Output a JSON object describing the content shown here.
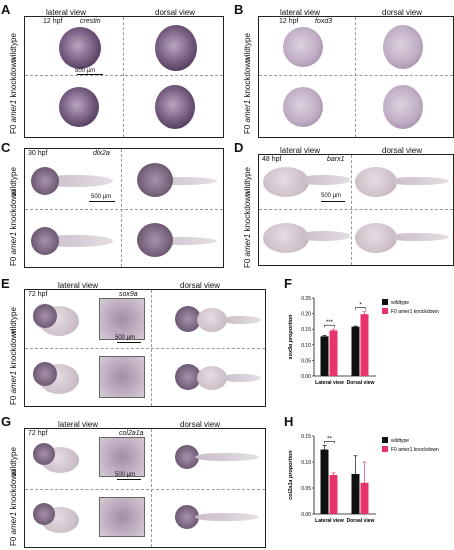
{
  "panels": {
    "A": {
      "label": "A",
      "stage": "12 hpf",
      "gene": "crestin",
      "scale": "500 µm"
    },
    "B": {
      "label": "B",
      "stage": "12 hpf",
      "gene": "foxd3"
    },
    "C": {
      "label": "C",
      "stage": "30 hpf",
      "gene": "dlx2a",
      "scale": "500 µm"
    },
    "D": {
      "label": "D",
      "stage": "48 hpf",
      "gene": "barx1",
      "scale": "500 µm"
    },
    "E": {
      "label": "E",
      "stage": "72 hpf",
      "gene": "sox9a",
      "scale": "500 µm"
    },
    "F": {
      "label": "F"
    },
    "G": {
      "label": "G",
      "stage": "72 hpf",
      "gene": "col2a1a",
      "scale": "500 µm"
    },
    "H": {
      "label": "H"
    }
  },
  "views": {
    "lateral": "lateral view",
    "dorsal": "dorsal view"
  },
  "rows": {
    "wildtype": "wildtype",
    "f0_prefix": "F0 ",
    "f0_gene": "amer1",
    "f0_suffix": " knockdown"
  },
  "colors": {
    "wildtype": "#111111",
    "knockdown": "#e8336d"
  },
  "chart_data": [
    {
      "type": "bar",
      "panel": "F",
      "categories": [
        "Lateral view",
        "Dorsal view"
      ],
      "series": [
        {
          "name": "wildtype",
          "values": [
            0.127,
            0.158
          ],
          "errors": [
            0.003,
            0.002
          ]
        },
        {
          "name": "F0 amer1 knockdown",
          "values": [
            0.146,
            0.198
          ],
          "errors": [
            0.004,
            0.008
          ]
        }
      ],
      "ylabel": "sox9a proportion",
      "ylim": [
        0,
        0.25
      ],
      "yticks": [
        "0.00",
        "0.05",
        "0.10",
        "0.15",
        "0.20",
        "0.25"
      ],
      "significance": [
        "***",
        "*"
      ],
      "legend": "top-right"
    },
    {
      "type": "bar",
      "panel": "H",
      "categories": [
        "Lateral view",
        "Dorsal view"
      ],
      "series": [
        {
          "name": "wildtype",
          "values": [
            0.124,
            0.077
          ],
          "errors": [
            0.008,
            0.035
          ]
        },
        {
          "name": "F0 amer1 knockdown",
          "values": [
            0.075,
            0.06
          ],
          "errors": [
            0.004,
            0.04
          ]
        }
      ],
      "ylabel": "col2a1a proportion",
      "ylim": [
        0,
        0.15
      ],
      "yticks": [
        "0.00",
        "0.05",
        "0.10",
        "0.15"
      ],
      "significance": [
        "**"
      ],
      "legend": "top-right"
    }
  ]
}
